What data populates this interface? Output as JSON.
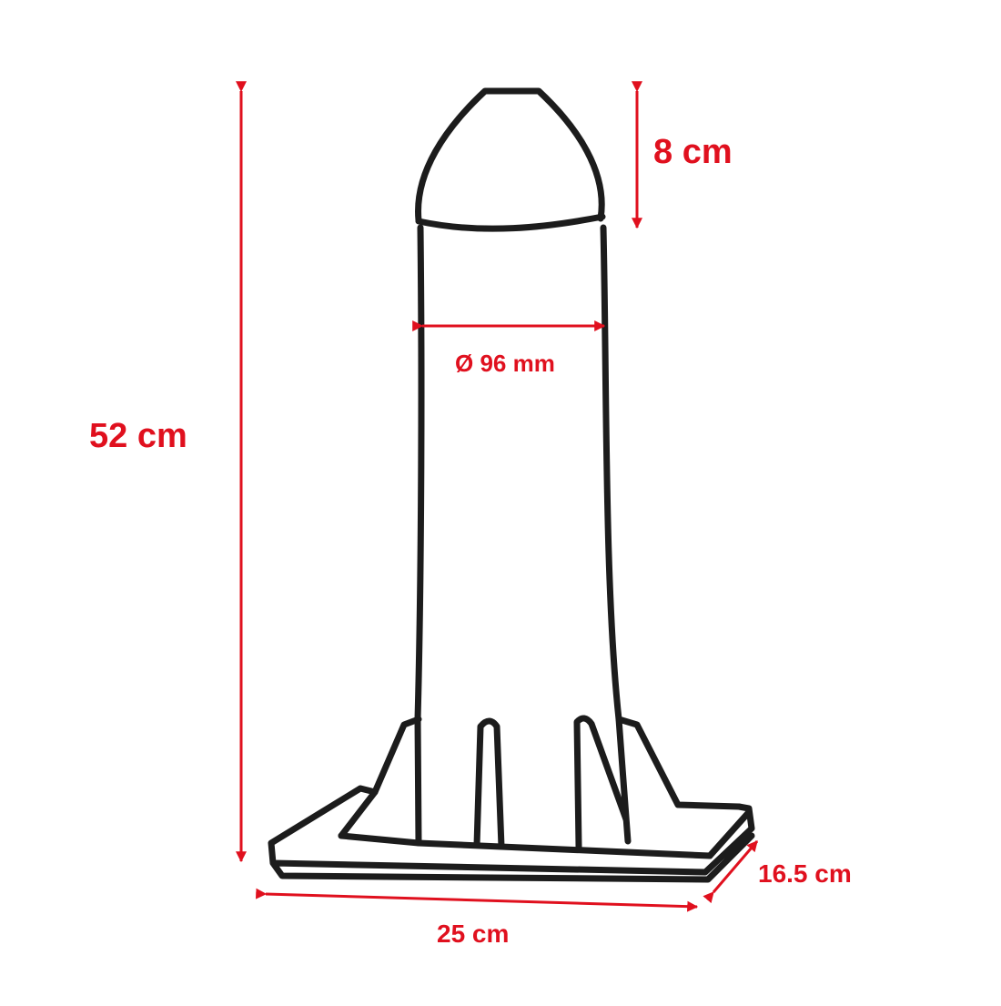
{
  "colors": {
    "dimension": "#e0101e",
    "outline": "#1c1c1c",
    "background": "#ffffff"
  },
  "dimensions": {
    "total_height": "52 cm",
    "cap_height": "8 cm",
    "diameter": "Ø 96 mm",
    "base_width": "25 cm",
    "base_depth": "16.5 cm"
  }
}
